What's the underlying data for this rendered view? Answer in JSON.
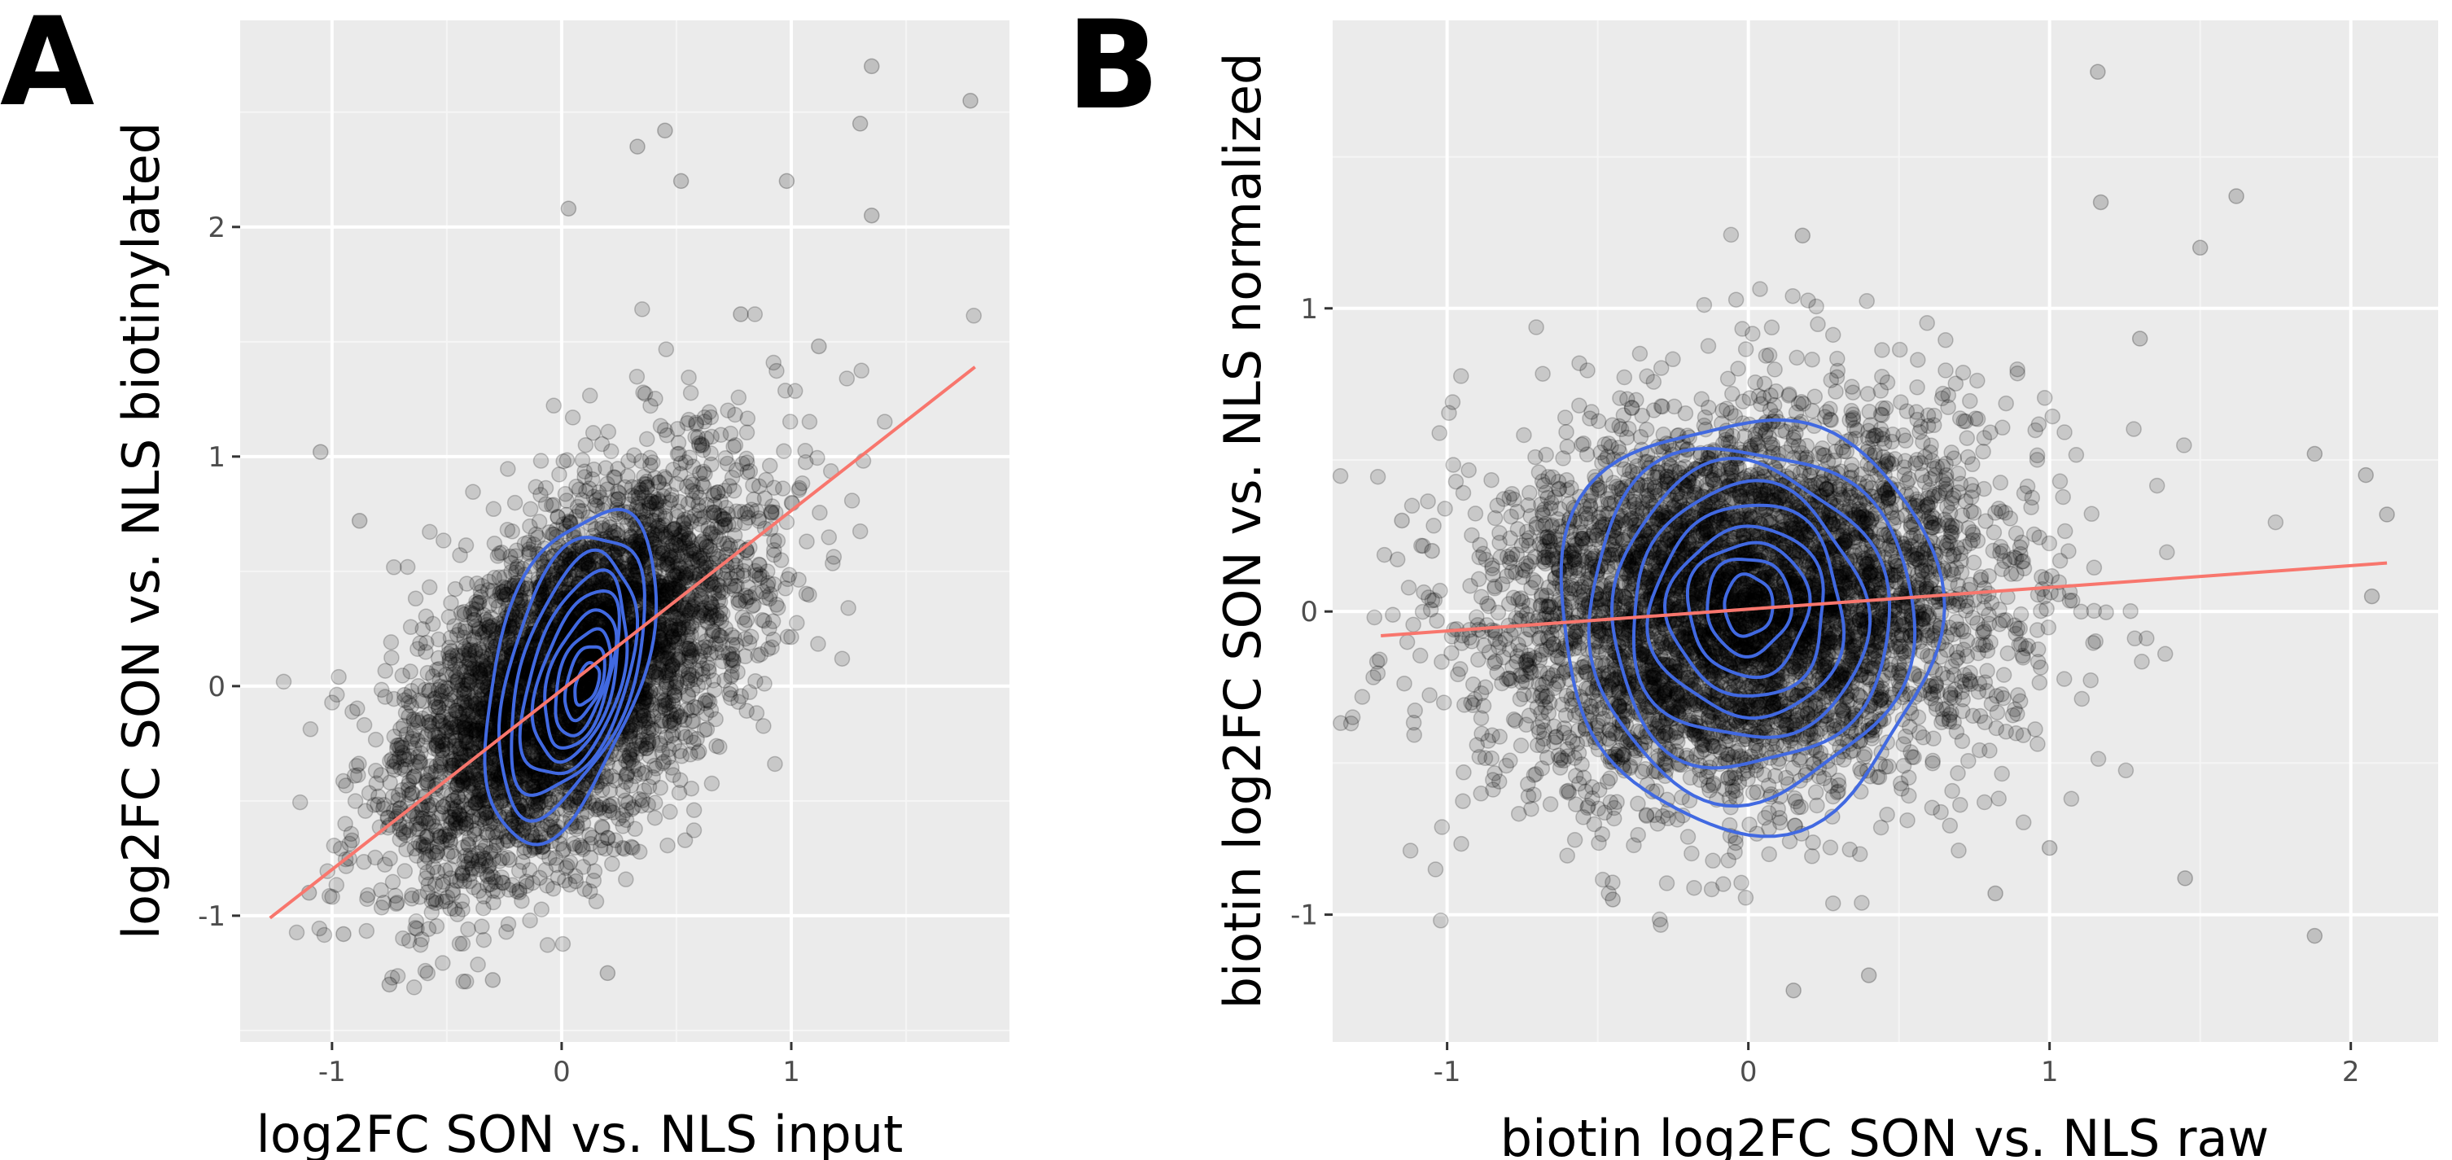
{
  "colors": {
    "panel_background": "#ebebeb",
    "major_grid": "#ffffff",
    "minor_grid": "#f5f5f5",
    "points": "#000000",
    "contour": "#4169e1",
    "fit_line": "#f8766d",
    "tick_text": "#4d4d4d"
  },
  "chart_data": [
    {
      "type": "scatter",
      "panel_label": "A",
      "title": "",
      "xlabel": "log2FC SON vs. NLS input",
      "ylabel": "log2FC SON vs. NLS biotinylated",
      "xlim": [
        -1.4,
        1.95
      ],
      "ylim": [
        -1.55,
        2.9
      ],
      "x_ticks": [
        {
          "value": -1,
          "label": "-1"
        },
        {
          "value": 0,
          "label": "0"
        },
        {
          "value": 1,
          "label": "1"
        }
      ],
      "y_ticks": [
        {
          "value": -1,
          "label": "-1"
        },
        {
          "value": 0,
          "label": "0"
        },
        {
          "value": 1,
          "label": "1"
        },
        {
          "value": 2,
          "label": "2"
        }
      ],
      "grid": true,
      "point_cloud": {
        "approx_count": 5000,
        "center": [
          0.05,
          0.05
        ],
        "sd_major": 0.5,
        "sd_minor": 0.26,
        "angle_deg": 52,
        "opacity": 0.15,
        "seed": 11
      },
      "outliers": [
        [
          1.35,
          2.7
        ],
        [
          1.78,
          2.55
        ],
        [
          1.3,
          2.45
        ],
        [
          0.45,
          2.42
        ],
        [
          0.33,
          2.35
        ],
        [
          0.52,
          2.2
        ],
        [
          0.03,
          2.08
        ],
        [
          1.35,
          2.05
        ],
        [
          0.98,
          2.2
        ],
        [
          -1.05,
          1.02
        ],
        [
          -0.88,
          0.72
        ],
        [
          -0.95,
          -1.08
        ],
        [
          -1.1,
          -0.9
        ],
        [
          -0.75,
          -1.3
        ],
        [
          -0.3,
          -1.28
        ],
        [
          0.2,
          -1.25
        ],
        [
          0.78,
          1.62
        ],
        [
          1.12,
          1.48
        ]
      ],
      "contours": [
        {
          "rx": 0.34,
          "ry": 0.72,
          "shift": [
            0.0,
            0.06
          ]
        },
        {
          "rx": 0.29,
          "ry": 0.61,
          "shift": [
            0.01,
            0.06
          ]
        },
        {
          "rx": 0.25,
          "ry": 0.52,
          "shift": [
            0.02,
            0.05
          ]
        },
        {
          "rx": 0.21,
          "ry": 0.44,
          "shift": [
            0.03,
            0.04
          ]
        },
        {
          "rx": 0.17,
          "ry": 0.37,
          "shift": [
            0.04,
            0.04
          ]
        },
        {
          "rx": 0.14,
          "ry": 0.3,
          "shift": [
            0.05,
            0.03
          ]
        },
        {
          "rx": 0.11,
          "ry": 0.23,
          "shift": [
            0.06,
            0.02
          ]
        },
        {
          "rx": 0.08,
          "ry": 0.16,
          "shift": [
            0.07,
            0.02
          ]
        },
        {
          "rx": 0.05,
          "ry": 0.09,
          "shift": [
            0.08,
            0.01
          ]
        }
      ],
      "contour_center": [
        0.03,
        0.0
      ],
      "contour_tilt": 0.35,
      "fit_line": {
        "x0": -1.27,
        "y0": -1.01,
        "x1": 1.8,
        "y1": 1.39
      }
    },
    {
      "type": "scatter",
      "panel_label": "B",
      "title": "",
      "xlabel": "biotin log2FC SON vs. NLS raw",
      "ylabel": "biotin log2FC SON vs. NLS normalized",
      "xlim": [
        -1.38,
        2.29
      ],
      "ylim": [
        -1.42,
        1.95
      ],
      "x_ticks": [
        {
          "value": -1,
          "label": "-1"
        },
        {
          "value": 0,
          "label": "0"
        },
        {
          "value": 1,
          "label": "1"
        },
        {
          "value": 2,
          "label": "2"
        }
      ],
      "y_ticks": [
        {
          "value": -1,
          "label": "-1"
        },
        {
          "value": 0,
          "label": "0"
        },
        {
          "value": 1,
          "label": "1"
        }
      ],
      "grid": true,
      "point_cloud": {
        "approx_count": 5500,
        "center": [
          -0.02,
          0.02
        ],
        "sd_major": 0.42,
        "sd_minor": 0.3,
        "angle_deg": 8,
        "opacity": 0.15,
        "seed": 29
      },
      "outliers": [
        [
          1.16,
          1.78
        ],
        [
          1.62,
          1.37
        ],
        [
          1.17,
          1.35
        ],
        [
          1.5,
          1.2
        ],
        [
          2.05,
          0.45
        ],
        [
          2.12,
          0.32
        ],
        [
          2.07,
          0.05
        ],
        [
          1.88,
          0.52
        ],
        [
          -1.15,
          0.3
        ],
        [
          -1.05,
          0.2
        ],
        [
          1.88,
          -1.07
        ],
        [
          1.45,
          -0.88
        ],
        [
          1.0,
          -0.78
        ],
        [
          0.82,
          -0.93
        ],
        [
          0.15,
          -1.25
        ],
        [
          0.4,
          -1.2
        ],
        [
          -0.45,
          -0.95
        ],
        [
          1.3,
          0.9
        ],
        [
          0.18,
          1.24
        ]
      ],
      "contours": [
        {
          "rx": 0.63,
          "ry": 0.68,
          "shift": [
            0.0,
            0.0
          ]
        },
        {
          "rx": 0.54,
          "ry": 0.58,
          "shift": [
            0.0,
            0.0
          ]
        },
        {
          "rx": 0.46,
          "ry": 0.5,
          "shift": [
            0.0,
            0.01
          ]
        },
        {
          "rx": 0.39,
          "ry": 0.42,
          "shift": [
            0.0,
            0.02
          ]
        },
        {
          "rx": 0.32,
          "ry": 0.35,
          "shift": [
            0.0,
            0.03
          ]
        },
        {
          "rx": 0.26,
          "ry": 0.28,
          "shift": [
            0.0,
            0.03
          ]
        },
        {
          "rx": 0.2,
          "ry": 0.22,
          "shift": [
            0.0,
            0.04
          ]
        },
        {
          "rx": 0.14,
          "ry": 0.16,
          "shift": [
            0.0,
            0.05
          ]
        },
        {
          "rx": 0.08,
          "ry": 0.1,
          "shift": [
            0.0,
            0.05
          ]
        }
      ],
      "contour_center": [
        0.0,
        -0.03
      ],
      "contour_tilt": 0.0,
      "fit_line": {
        "x0": -1.22,
        "y0": -0.08,
        "x1": 2.12,
        "y1": 0.16
      }
    }
  ]
}
